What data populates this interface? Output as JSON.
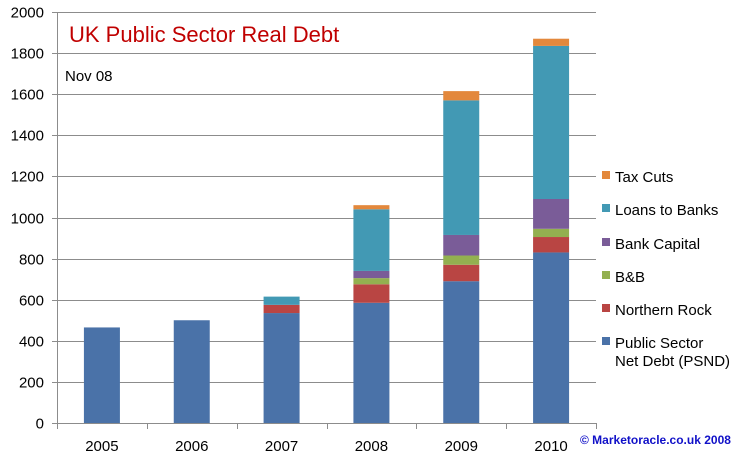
{
  "chart_data": {
    "type": "bar",
    "stacked": true,
    "title": "UK Public Sector Real Debt",
    "subtitle": "Nov 08",
    "credit": "© Marketoracle.co.uk  2008",
    "categories": [
      "2005",
      "2006",
      "2007",
      "2008",
      "2009",
      "2010"
    ],
    "ylim": [
      0,
      2000
    ],
    "yticks": [
      0,
      200,
      400,
      600,
      800,
      1000,
      1200,
      1400,
      1600,
      1800,
      2000
    ],
    "grid": true,
    "legend_position": "right",
    "series": [
      {
        "name": "Public Sector Net Debt (PSND)",
        "legend_lines": [
          "Public Sector",
          "Net Debt (PSND)"
        ],
        "color": "#4a72a8",
        "values": [
          465,
          500,
          535,
          585,
          690,
          830
        ]
      },
      {
        "name": "Northern Rock",
        "legend_lines": [
          "Northern Rock"
        ],
        "color": "#b94543",
        "values": [
          0,
          0,
          40,
          90,
          80,
          75
        ]
      },
      {
        "name": "B&B",
        "legend_lines": [
          "B&B"
        ],
        "color": "#93b050",
        "values": [
          0,
          0,
          0,
          30,
          45,
          40
        ]
      },
      {
        "name": "Bank Capital",
        "legend_lines": [
          "Bank Capital"
        ],
        "color": "#7a5c98",
        "values": [
          0,
          0,
          0,
          35,
          100,
          145
        ]
      },
      {
        "name": "Loans to Banks",
        "legend_lines": [
          "Loans to  Banks"
        ],
        "color": "#4299b4",
        "values": [
          0,
          0,
          40,
          300,
          655,
          745
        ]
      },
      {
        "name": "Tax Cuts",
        "legend_lines": [
          "Tax Cuts"
        ],
        "color": "#e3883c",
        "values": [
          0,
          0,
          0,
          20,
          45,
          35
        ]
      }
    ]
  }
}
